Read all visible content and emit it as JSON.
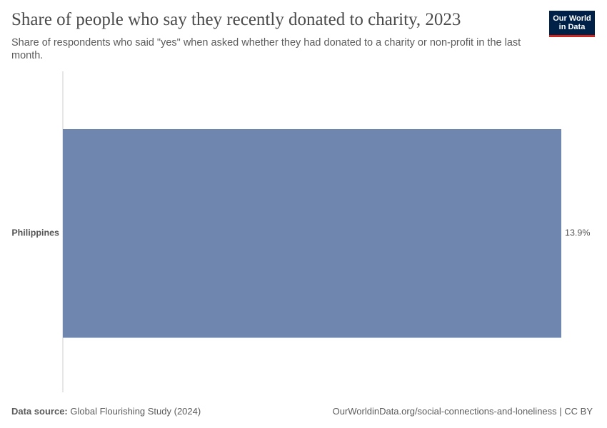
{
  "chart_data": {
    "type": "bar",
    "orientation": "horizontal",
    "title": "Share of people who say they recently donated to charity, 2023",
    "subtitle": "Share of respondents who said \"yes\" when asked whether they had donated to a charity or non-profit in the last month.",
    "categories": [
      "Philippines"
    ],
    "values": [
      13.9
    ],
    "value_labels": [
      "13.9%"
    ],
    "color": "#6f87ae"
  },
  "logo": [
    "Our World",
    "in Data"
  ],
  "footer": {
    "source_label": "Data source:",
    "source": "Global Flourishing Study (2024)",
    "right": "OurWorldinData.org/social-connections-and-loneliness | CC BY"
  }
}
